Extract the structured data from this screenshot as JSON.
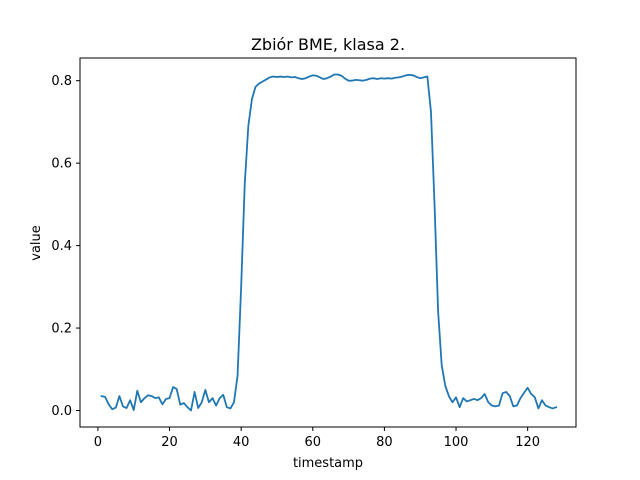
{
  "chart_data": {
    "type": "line",
    "title": "Zbiór BME, klasa 2.",
    "xlabel": "timestamp",
    "ylabel": "value",
    "xlim": [
      -5,
      133.5
    ],
    "ylim": [
      -0.04,
      0.855
    ],
    "xticks": [
      0,
      20,
      40,
      60,
      80,
      100,
      120
    ],
    "yticks": [
      0.0,
      0.2,
      0.4,
      0.6,
      0.8
    ],
    "ytick_labels": [
      "0.0",
      "0.2",
      "0.4",
      "0.6",
      "0.8"
    ],
    "grid": false,
    "color": "#1f77b4",
    "series": [
      {
        "x": [
          1,
          2,
          3,
          4,
          5,
          6,
          7,
          8,
          9,
          10,
          11,
          12,
          13,
          14,
          15,
          16,
          17,
          18,
          19,
          20,
          21,
          22,
          23,
          24,
          25,
          26,
          27,
          28,
          29,
          30,
          31,
          32,
          33,
          34,
          35,
          36,
          37,
          38,
          39,
          40,
          41,
          42,
          43,
          44,
          45,
          46,
          47,
          48,
          49,
          50,
          51,
          52,
          53,
          54,
          55,
          56,
          57,
          58,
          59,
          60,
          61,
          62,
          63,
          64,
          65,
          66,
          67,
          68,
          69,
          70,
          71,
          72,
          73,
          74,
          75,
          76,
          77,
          78,
          79,
          80,
          81,
          82,
          83,
          84,
          85,
          86,
          87,
          88,
          89,
          90,
          91,
          92,
          93,
          94,
          95,
          96,
          97,
          98,
          99,
          100,
          101,
          102,
          103,
          104,
          105,
          106,
          107,
          108,
          109,
          110,
          111,
          112,
          113,
          114,
          115,
          116,
          117,
          118,
          119,
          120,
          121,
          122,
          123,
          124,
          125,
          126,
          127,
          128
        ],
        "values": [
          0.035,
          0.033,
          0.015,
          0.003,
          0.007,
          0.035,
          0.01,
          0.006,
          0.025,
          0.001,
          0.048,
          0.02,
          0.03,
          0.037,
          0.035,
          0.03,
          0.032,
          0.015,
          0.028,
          0.03,
          0.057,
          0.052,
          0.014,
          0.018,
          0.008,
          0.0,
          0.045,
          0.006,
          0.02,
          0.05,
          0.02,
          0.03,
          0.012,
          0.03,
          0.038,
          0.008,
          0.005,
          0.02,
          0.085,
          0.3,
          0.55,
          0.69,
          0.755,
          0.785,
          0.793,
          0.798,
          0.803,
          0.808,
          0.81,
          0.809,
          0.81,
          0.809,
          0.81,
          0.808,
          0.809,
          0.806,
          0.804,
          0.806,
          0.81,
          0.813,
          0.812,
          0.808,
          0.804,
          0.806,
          0.81,
          0.815,
          0.815,
          0.812,
          0.805,
          0.8,
          0.8,
          0.802,
          0.801,
          0.8,
          0.802,
          0.805,
          0.806,
          0.804,
          0.806,
          0.805,
          0.806,
          0.805,
          0.807,
          0.808,
          0.81,
          0.813,
          0.814,
          0.813,
          0.809,
          0.806,
          0.808,
          0.81,
          0.725,
          0.5,
          0.24,
          0.11,
          0.06,
          0.035,
          0.02,
          0.032,
          0.008,
          0.03,
          0.022,
          0.025,
          0.028,
          0.025,
          0.03,
          0.04,
          0.02,
          0.012,
          0.01,
          0.012,
          0.042,
          0.045,
          0.035,
          0.01,
          0.012,
          0.03,
          0.043,
          0.055,
          0.04,
          0.032,
          0.005,
          0.025,
          0.012,
          0.008,
          0.005,
          0.008
        ]
      }
    ]
  }
}
